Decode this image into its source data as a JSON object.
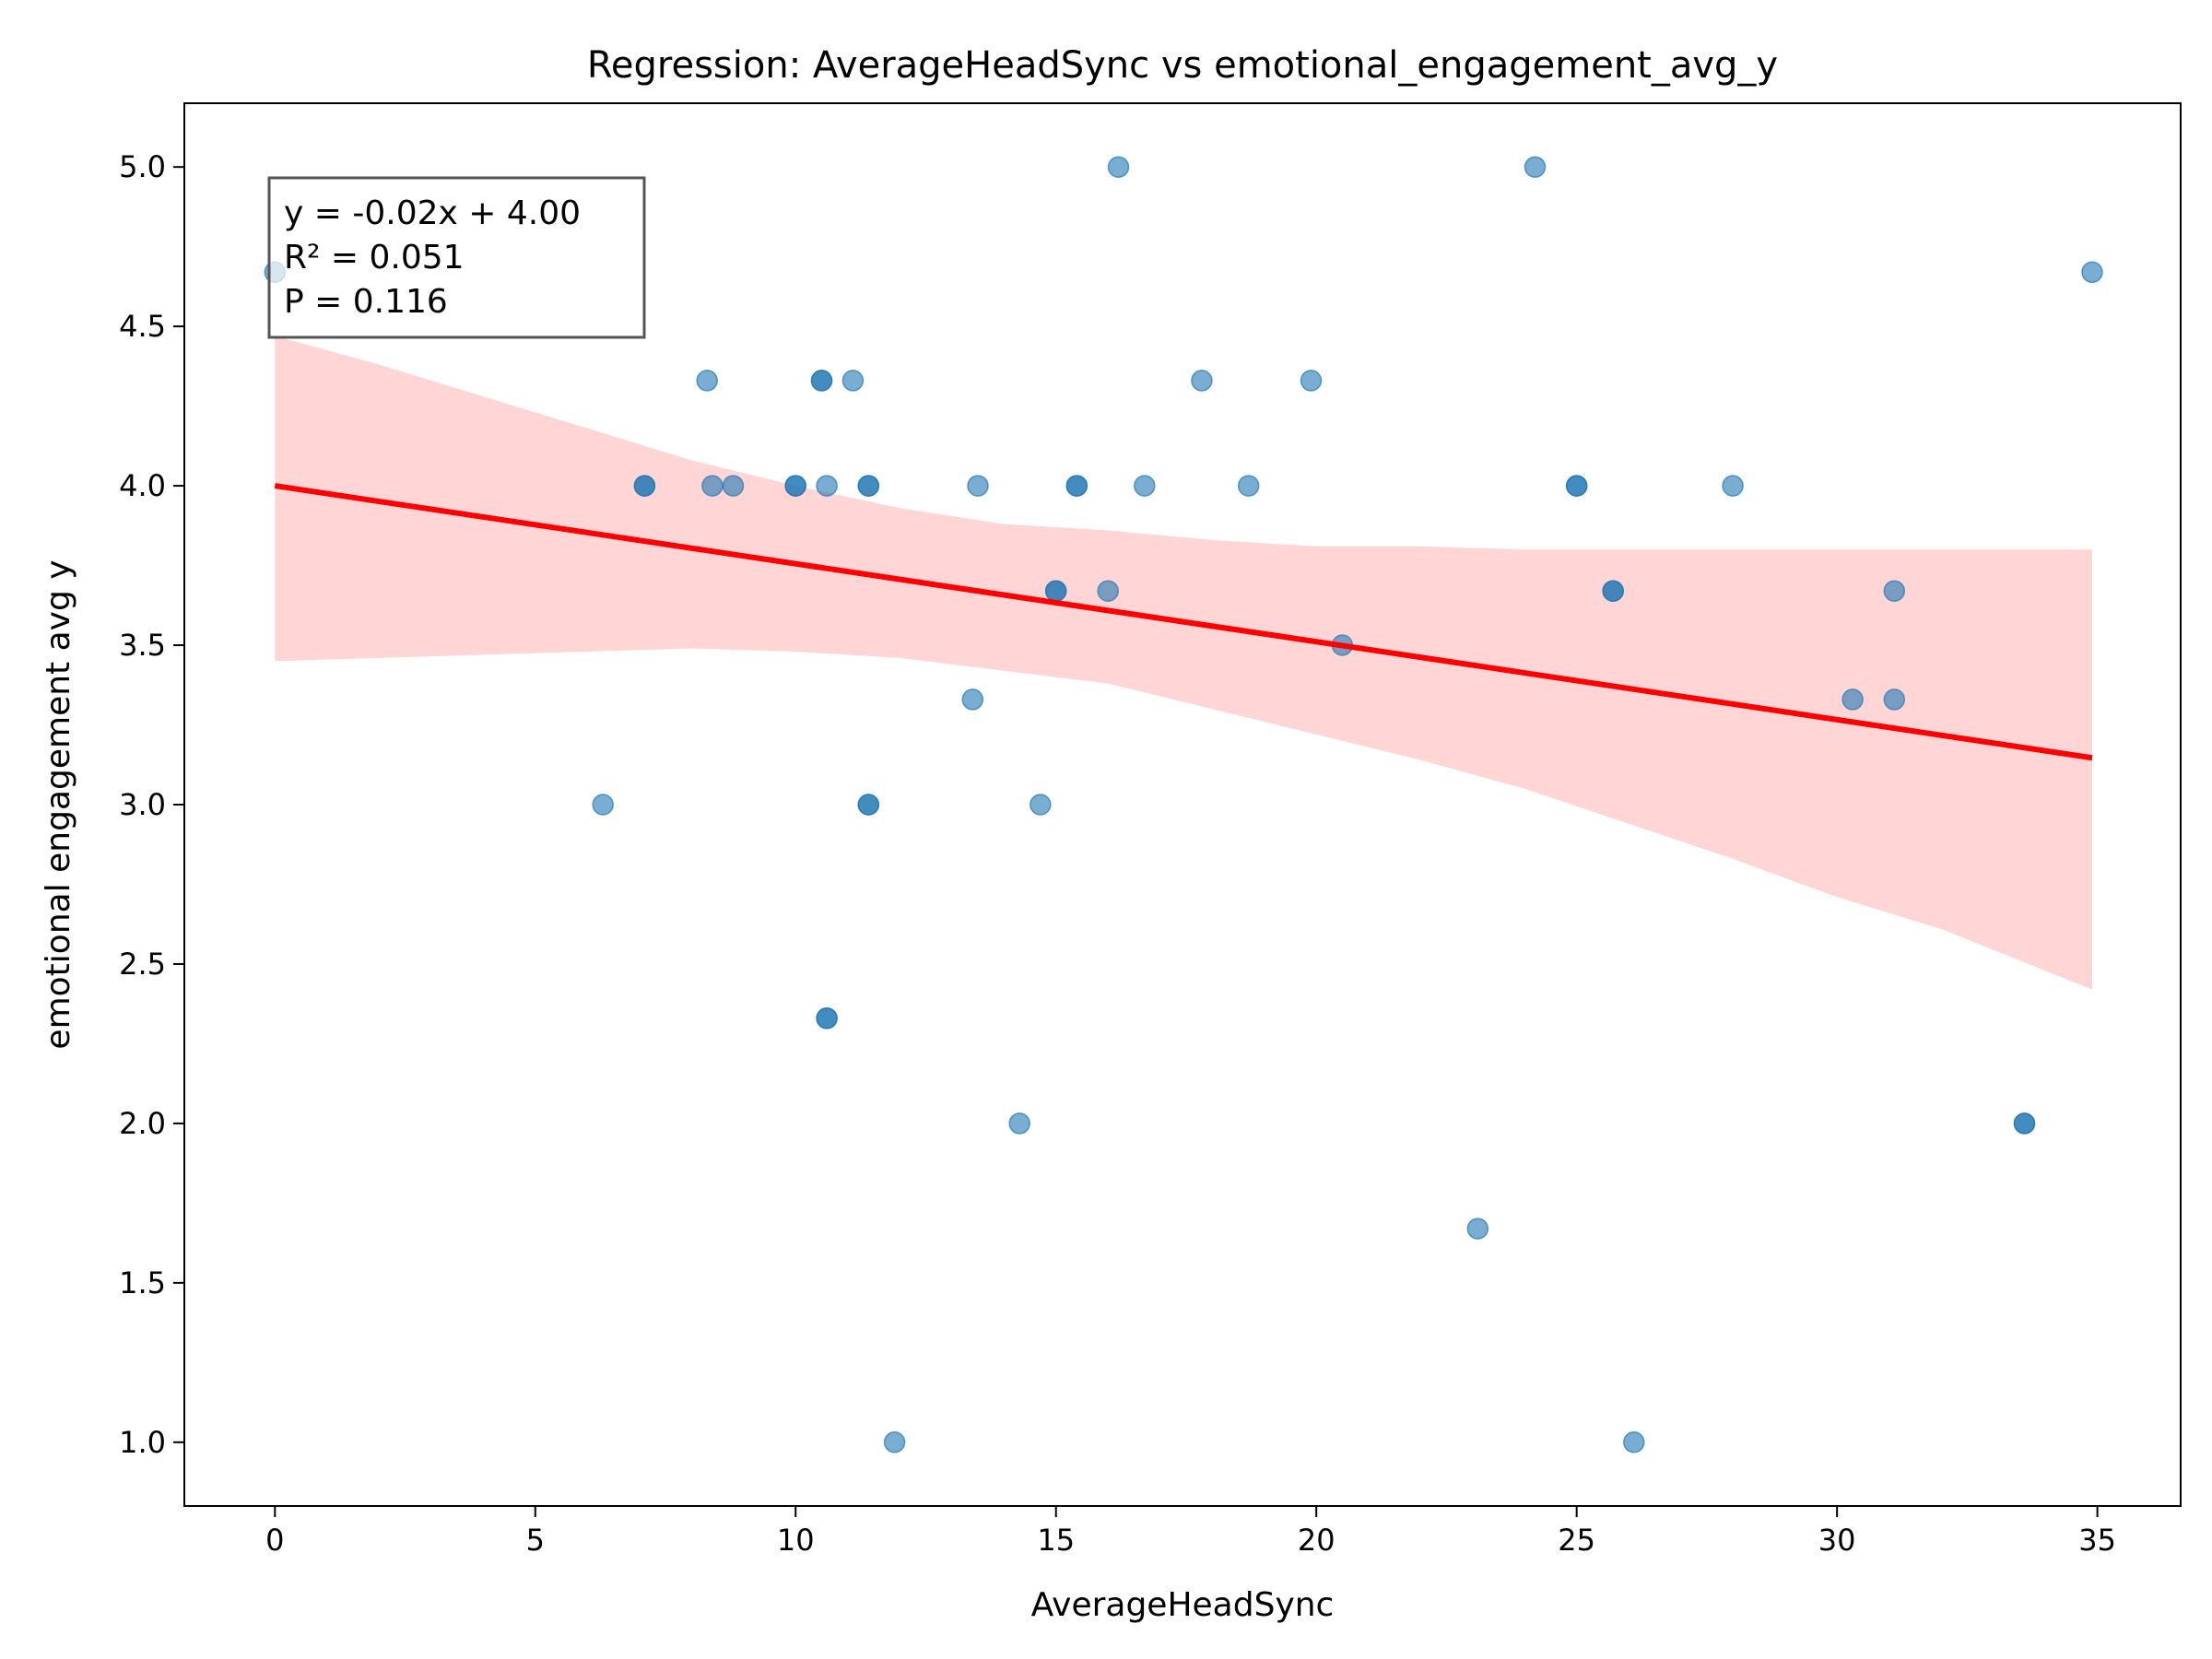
{
  "chart_data": {
    "type": "scatter",
    "title": "Regression: AverageHeadSync vs emotional_engagement_avg_y",
    "xlabel": "AverageHeadSync",
    "ylabel": "emotional engagement avg y",
    "xlim": [
      -1.74,
      36.6
    ],
    "ylim": [
      0.8,
      5.2
    ],
    "xticks": [
      0,
      5,
      10,
      15,
      20,
      25,
      30,
      35
    ],
    "yticks": [
      1.0,
      1.5,
      2.0,
      2.5,
      3.0,
      3.5,
      4.0,
      4.5,
      5.0
    ],
    "xtick_labels": [
      "0",
      "5",
      "10",
      "15",
      "20",
      "25",
      "30",
      "35"
    ],
    "ytick_labels": [
      "1.0",
      "1.5",
      "2.0",
      "2.5",
      "3.0",
      "3.5",
      "4.0",
      "4.5",
      "5.0"
    ],
    "grid": false,
    "legend": "none",
    "points": [
      [
        0.0,
        4.67
      ],
      [
        6.3,
        3.0
      ],
      [
        7.1,
        4.0
      ],
      [
        7.1,
        4.0
      ],
      [
        8.3,
        4.33
      ],
      [
        8.4,
        4.0
      ],
      [
        8.8,
        4.0
      ],
      [
        10.0,
        4.0
      ],
      [
        10.0,
        4.0
      ],
      [
        10.5,
        4.33
      ],
      [
        10.5,
        4.33
      ],
      [
        10.6,
        4.0
      ],
      [
        10.6,
        2.33
      ],
      [
        10.6,
        2.33
      ],
      [
        11.1,
        4.33
      ],
      [
        11.4,
        4.0
      ],
      [
        11.4,
        4.0
      ],
      [
        11.4,
        3.0
      ],
      [
        11.4,
        3.0
      ],
      [
        11.9,
        1.0
      ],
      [
        13.4,
        3.33
      ],
      [
        13.5,
        4.0
      ],
      [
        14.3,
        2.0
      ],
      [
        14.7,
        3.0
      ],
      [
        15.0,
        3.67
      ],
      [
        15.0,
        3.67
      ],
      [
        15.4,
        4.0
      ],
      [
        15.4,
        4.0
      ],
      [
        16.0,
        3.67
      ],
      [
        16.2,
        5.0
      ],
      [
        16.7,
        4.0
      ],
      [
        17.8,
        4.33
      ],
      [
        18.7,
        4.0
      ],
      [
        19.9,
        4.33
      ],
      [
        20.5,
        3.5
      ],
      [
        23.1,
        1.67
      ],
      [
        24.2,
        5.0
      ],
      [
        25.0,
        4.0
      ],
      [
        25.0,
        4.0
      ],
      [
        25.7,
        3.67
      ],
      [
        25.7,
        3.67
      ],
      [
        26.1,
        1.0
      ],
      [
        28.0,
        4.0
      ],
      [
        30.3,
        3.33
      ],
      [
        31.1,
        3.67
      ],
      [
        31.1,
        3.33
      ],
      [
        33.6,
        2.0
      ],
      [
        33.6,
        2.0
      ],
      [
        34.9,
        4.67
      ]
    ],
    "point_color": "#1f77b4",
    "regression": {
      "slope": -0.02445,
      "intercept": 4.0,
      "x_range": [
        0,
        34.9
      ],
      "line_color": "#ff0000",
      "band_color": "#ffb3b3",
      "band": {
        "x": [
          0.0,
          2.0,
          4.0,
          6.0,
          8.0,
          10.0,
          12.0,
          14.0,
          16.0,
          18.0,
          20.0,
          22.0,
          24.0,
          26.0,
          28.0,
          30.0,
          32.0,
          34.9
        ],
        "upper": [
          4.47,
          4.38,
          4.28,
          4.18,
          4.08,
          4.0,
          3.93,
          3.88,
          3.86,
          3.83,
          3.81,
          3.81,
          3.8,
          3.8,
          3.8,
          3.8,
          3.8,
          3.8
        ],
        "lower": [
          3.45,
          3.46,
          3.47,
          3.48,
          3.49,
          3.48,
          3.46,
          3.42,
          3.38,
          3.3,
          3.22,
          3.14,
          3.05,
          2.94,
          2.83,
          2.71,
          2.61,
          2.42
        ]
      }
    },
    "annotation": {
      "lines": [
        "y = -0.02x + 4.00",
        "R² = 0.051",
        "P = 0.116"
      ]
    }
  }
}
